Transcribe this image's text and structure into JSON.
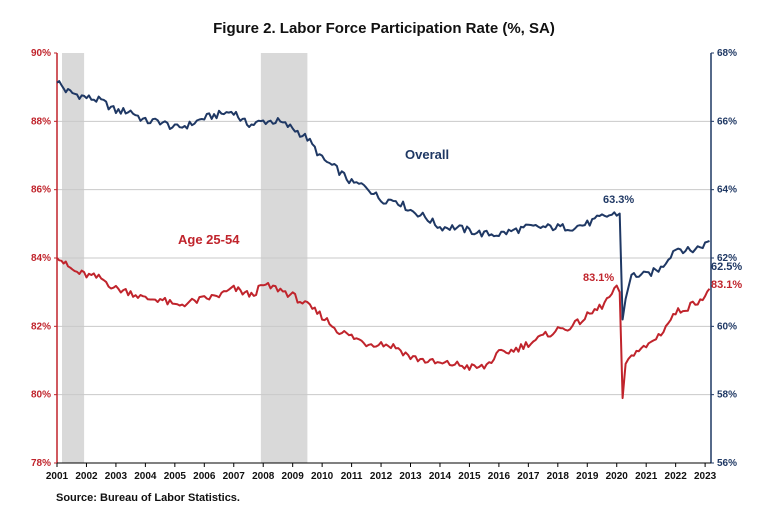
{
  "chart_data": {
    "type": "line",
    "title": "Figure 2. Labor Force Participation  Rate (%, SA)",
    "source": "Source: Bureau of Labor Statistics.",
    "x_tick_labels": [
      "2001",
      "2002",
      "2003",
      "2004",
      "2005",
      "2006",
      "2007",
      "2008",
      "2009",
      "2010",
      "2011",
      "2012",
      "2013",
      "2014",
      "2015",
      "2016",
      "2017",
      "2018",
      "2019",
      "2020",
      "2021",
      "2022",
      "2023"
    ],
    "x_range": [
      2001,
      2023.2
    ],
    "y_left": {
      "ticks": [
        "78%",
        "80%",
        "82%",
        "84%",
        "86%",
        "88%",
        "90%"
      ],
      "range": [
        78,
        90
      ],
      "color": "#c0242c"
    },
    "y_right": {
      "ticks": [
        "56%",
        "58%",
        "60%",
        "62%",
        "64%",
        "66%",
        "68%"
      ],
      "range": [
        56,
        68
      ],
      "color": "#1f3864"
    },
    "recessions": [
      [
        2001.17,
        2001.92
      ],
      [
        2007.92,
        2009.5
      ]
    ],
    "series": [
      {
        "name": "Overall",
        "axis": "right",
        "color": "#1f3864",
        "x": [
          2001.0,
          2001.3,
          2001.6,
          2002.0,
          2002.5,
          2003.0,
          2003.5,
          2004.0,
          2004.5,
          2005.0,
          2005.5,
          2006.0,
          2006.5,
          2007.0,
          2007.3,
          2007.6,
          2008.0,
          2008.5,
          2009.0,
          2009.5,
          2010.0,
          2010.5,
          2011.0,
          2011.5,
          2012.0,
          2012.5,
          2013.0,
          2013.5,
          2014.0,
          2014.5,
          2015.0,
          2015.5,
          2016.0,
          2016.5,
          2017.0,
          2017.5,
          2018.0,
          2018.5,
          2019.0,
          2019.5,
          2020.0,
          2020.1,
          2020.2,
          2020.3,
          2020.5,
          2021.0,
          2021.5,
          2022.0,
          2022.5,
          2023.0,
          2023.15
        ],
        "values": [
          67.2,
          66.9,
          66.8,
          66.7,
          66.6,
          66.3,
          66.3,
          66.0,
          66.0,
          65.8,
          65.9,
          66.1,
          66.2,
          66.3,
          66.0,
          65.9,
          66.0,
          66.0,
          65.8,
          65.5,
          64.9,
          64.6,
          64.2,
          64.1,
          63.7,
          63.7,
          63.4,
          63.2,
          62.9,
          62.9,
          62.8,
          62.7,
          62.7,
          62.8,
          62.9,
          62.9,
          62.9,
          62.9,
          63.0,
          63.2,
          63.3,
          63.3,
          60.2,
          60.8,
          61.5,
          61.5,
          61.7,
          62.3,
          62.2,
          62.4,
          62.5
        ],
        "label": "Overall",
        "annotations": [
          "63.3%",
          "62.5%"
        ]
      },
      {
        "name": "Age 25-54",
        "axis": "left",
        "color": "#c0242c",
        "x": [
          2001.0,
          2001.3,
          2001.6,
          2002.0,
          2002.5,
          2003.0,
          2003.5,
          2004.0,
          2004.5,
          2005.0,
          2005.5,
          2006.0,
          2006.5,
          2007.0,
          2007.3,
          2007.6,
          2008.0,
          2008.5,
          2009.0,
          2009.5,
          2010.0,
          2010.5,
          2011.0,
          2011.5,
          2012.0,
          2012.5,
          2013.0,
          2013.5,
          2014.0,
          2014.5,
          2015.0,
          2015.5,
          2016.0,
          2016.5,
          2017.0,
          2017.5,
          2018.0,
          2018.5,
          2019.0,
          2019.5,
          2020.0,
          2020.1,
          2020.2,
          2020.3,
          2020.5,
          2021.0,
          2021.5,
          2022.0,
          2022.5,
          2023.0,
          2023.15
        ],
        "values": [
          84.1,
          83.8,
          83.6,
          83.5,
          83.4,
          83.1,
          83.0,
          82.8,
          82.8,
          82.6,
          82.7,
          82.8,
          82.9,
          83.1,
          83.0,
          82.9,
          83.2,
          83.1,
          82.9,
          82.6,
          82.3,
          81.9,
          81.7,
          81.5,
          81.5,
          81.4,
          81.1,
          81.0,
          80.9,
          80.9,
          80.8,
          80.8,
          81.2,
          81.3,
          81.5,
          81.7,
          81.9,
          82.0,
          82.3,
          82.6,
          83.1,
          83.0,
          79.9,
          80.9,
          81.2,
          81.4,
          81.8,
          82.4,
          82.6,
          82.9,
          83.1
        ],
        "label": "Age 25-54",
        "annotations": [
          "83.1%",
          "83.1%"
        ]
      }
    ]
  }
}
